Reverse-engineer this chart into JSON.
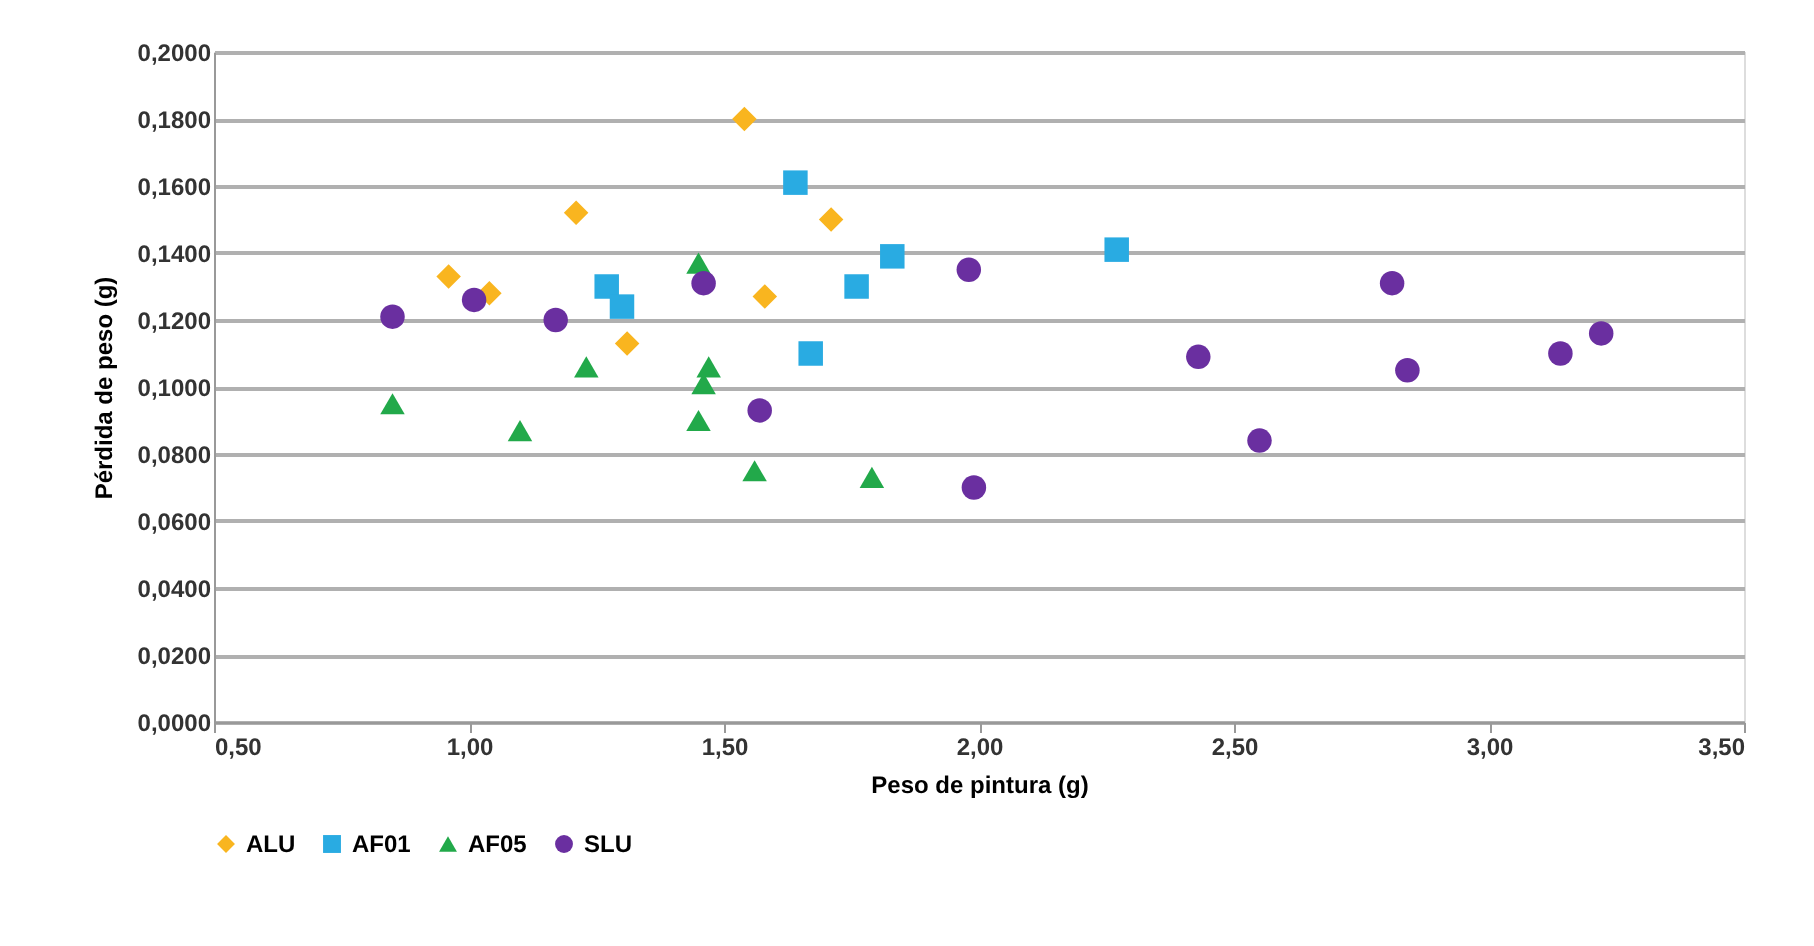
{
  "chart_data": {
    "type": "scatter",
    "xlabel": "Peso de pintura (g)",
    "ylabel": "Pérdida de peso (g)",
    "xlim": [
      0.5,
      3.5
    ],
    "xticks": [
      {
        "value": 0.5,
        "label": "0,50"
      },
      {
        "value": 1.0,
        "label": "1,00"
      },
      {
        "value": 1.5,
        "label": "1,50"
      },
      {
        "value": 2.0,
        "label": "2,00"
      },
      {
        "value": 2.5,
        "label": "2,50"
      },
      {
        "value": 3.0,
        "label": "3,00"
      },
      {
        "value": 3.5,
        "label": "3,50"
      }
    ],
    "ylim": [
      0,
      0.2
    ],
    "yticks": [
      {
        "value": 0,
        "label": "0,0000"
      },
      {
        "value": 0.02,
        "label": "0,0200"
      },
      {
        "value": 0.04,
        "label": "0,0400"
      },
      {
        "value": 0.06,
        "label": "0,0600"
      },
      {
        "value": 0.08,
        "label": "0,0800"
      },
      {
        "value": 0.1,
        "label": "0,1000"
      },
      {
        "value": 0.12,
        "label": "0,1200"
      },
      {
        "value": 0.14,
        "label": "0,1400"
      },
      {
        "value": 0.16,
        "label": "0,1600"
      },
      {
        "value": 0.18,
        "label": "0,1800"
      },
      {
        "value": 0.2,
        "label": "0,2000"
      }
    ],
    "grid": "y",
    "legend": "bottom",
    "series": [
      {
        "name": "ALU",
        "color": "#f9b51f",
        "marker": "diamond",
        "x": [
          0.96,
          1.04,
          1.21,
          1.31,
          1.54,
          1.58,
          1.71
        ],
        "values": [
          0.133,
          0.128,
          0.152,
          0.113,
          0.18,
          0.127,
          0.15
        ]
      },
      {
        "name": "AF01",
        "color": "#29abe2",
        "marker": "square",
        "x": [
          1.27,
          1.3,
          1.64,
          1.67,
          1.76,
          1.83,
          2.27
        ],
        "values": [
          0.13,
          0.124,
          0.161,
          0.11,
          0.13,
          0.139,
          0.141
        ]
      },
      {
        "name": "AF05",
        "color": "#22a94a",
        "marker": "triangle",
        "x": [
          0.85,
          1.1,
          1.23,
          1.45,
          1.45,
          1.46,
          1.47,
          1.56,
          1.79
        ],
        "values": [
          0.095,
          0.087,
          0.106,
          0.137,
          0.09,
          0.101,
          0.106,
          0.075,
          0.073
        ]
      },
      {
        "name": "SLU",
        "color": "#6a2fa0",
        "marker": "circle",
        "x": [
          0.85,
          1.01,
          1.17,
          1.46,
          1.57,
          1.98,
          1.99,
          2.43,
          2.55,
          2.81,
          2.84,
          3.14,
          3.22
        ],
        "values": [
          0.121,
          0.126,
          0.12,
          0.131,
          0.093,
          0.135,
          0.07,
          0.109,
          0.084,
          0.131,
          0.105,
          0.11,
          0.116
        ]
      }
    ]
  }
}
